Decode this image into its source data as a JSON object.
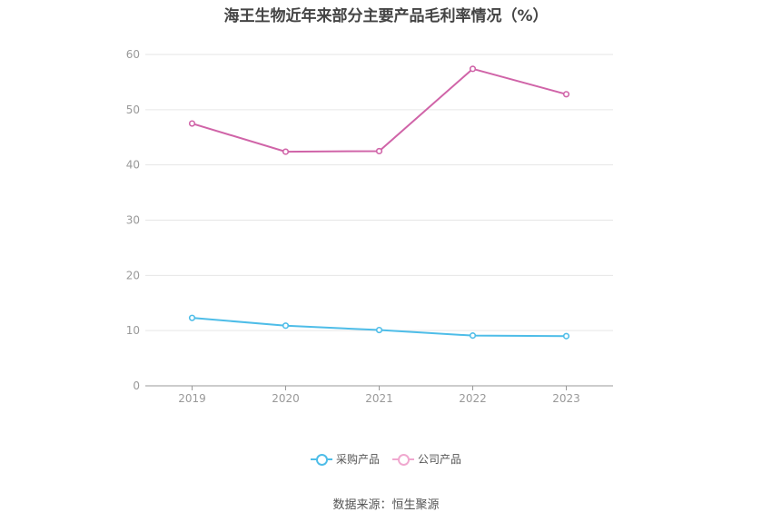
{
  "chart_data": {
    "type": "line",
    "title": "海王生物近年来部分主要产品毛利率情况（%）",
    "categories": [
      "2019",
      "2020",
      "2021",
      "2022",
      "2023"
    ],
    "ylim": [
      0,
      60
    ],
    "yticks": [
      "0",
      "10",
      "20",
      "30",
      "40",
      "50",
      "60"
    ],
    "grid": true,
    "legend_position": "bottom",
    "series": [
      {
        "name": "采购产品",
        "color": "#4ebde8",
        "values": [
          12.3,
          10.9,
          10.1,
          9.1,
          9.0
        ]
      },
      {
        "name": "公司产品",
        "color": "#d064a8",
        "values": [
          47.5,
          42.4,
          42.5,
          57.4,
          52.8
        ]
      }
    ]
  },
  "footer": {
    "source": "数据来源：恒生聚源"
  }
}
